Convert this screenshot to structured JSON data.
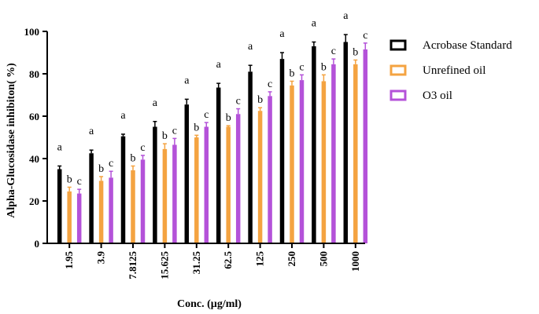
{
  "chart_data": {
    "type": "bar",
    "xlabel": "Conc. (µg/ml)",
    "ylabel": "Alpha-Glucosidase inhibiton( %)",
    "ylim": [
      0,
      100
    ],
    "yticks": [
      0,
      20,
      40,
      60,
      80,
      100
    ],
    "categories": [
      "1.95",
      "3.9",
      "7.8125",
      "15.625",
      "31.25",
      "62.5",
      "125",
      "250",
      "500",
      "1000"
    ],
    "legend_position": "right",
    "grid": false,
    "series": [
      {
        "name": "Acrobase Standard",
        "color": "#000000",
        "values": [
          35,
          42.5,
          50.5,
          55,
          65.5,
          73.5,
          81,
          87,
          93,
          95
        ],
        "error": [
          1.5,
          1.5,
          1,
          2.5,
          2.5,
          2,
          3,
          3,
          2,
          3.5
        ],
        "labels": [
          "a",
          "a",
          "a",
          "a",
          "a",
          "a",
          "a",
          "a",
          "a",
          "a"
        ]
      },
      {
        "name": "Unrefined oil",
        "color": "#f4a341",
        "values": [
          24.5,
          29.5,
          34.5,
          44.5,
          50,
          55,
          62.5,
          74.5,
          76.5,
          84.5
        ],
        "error": [
          2,
          2,
          2,
          2.5,
          1,
          0.5,
          1.5,
          2,
          3,
          2
        ],
        "labels": [
          "b",
          "b",
          "b",
          "b",
          "b",
          "b",
          "b",
          "b",
          "b",
          "b"
        ]
      },
      {
        "name": "O3 oil",
        "color": "#b452d9",
        "values": [
          23.5,
          31,
          39.5,
          46.5,
          55,
          61,
          69.5,
          77,
          84.5,
          91.5
        ],
        "error": [
          2,
          3,
          2,
          3,
          2,
          2.5,
          2,
          2.5,
          2.5,
          3
        ],
        "labels": [
          "c",
          "c",
          "c",
          "c",
          "c",
          "c",
          "c",
          "c",
          "c",
          "c"
        ]
      }
    ]
  }
}
